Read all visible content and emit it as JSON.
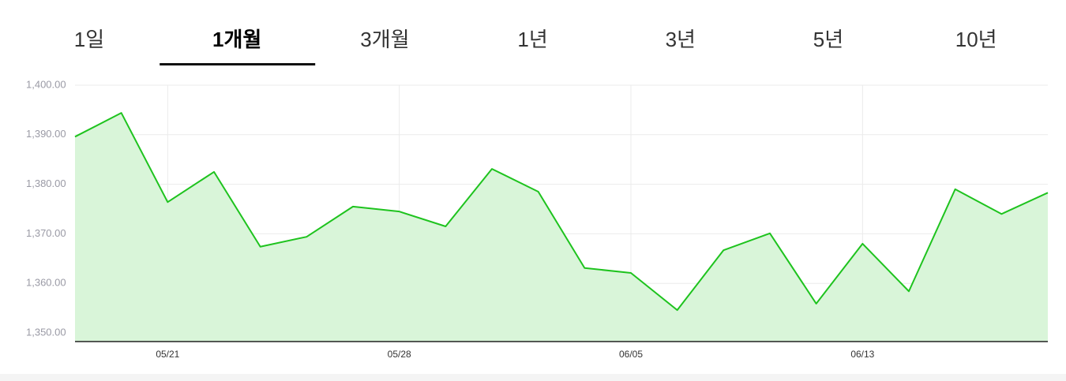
{
  "tabs": [
    "1일",
    "1개월",
    "3개월",
    "1년",
    "3년",
    "5년",
    "10년"
  ],
  "active_tab": 1,
  "chart_data": {
    "type": "area",
    "categories": [
      null,
      null,
      "05/21",
      null,
      null,
      null,
      null,
      "05/28",
      null,
      null,
      null,
      null,
      "06/05",
      null,
      null,
      null,
      null,
      "06/13",
      null,
      null,
      null,
      null
    ],
    "series": [
      {
        "color": "#1ec31e",
        "values": [
          1389.6,
          1394.4,
          1376.4,
          1382.5,
          1367.4,
          1369.4,
          1375.5,
          1374.5,
          1371.5,
          1383.1,
          1378.5,
          1363.1,
          1362.1,
          1354.6,
          1366.7,
          1370.1,
          1355.9,
          1368.0,
          1358.4,
          1379.0,
          1374.0,
          1378.3
        ]
      }
    ],
    "fill_color": "#d9f5d9",
    "ylim": [
      1348.25,
      1400
    ],
    "yticks": [
      {
        "value": 1350,
        "label": "1,350.00"
      },
      {
        "value": 1360,
        "label": "1,360.00"
      },
      {
        "value": 1370,
        "label": "1,370.00"
      },
      {
        "value": 1380,
        "label": "1,380.00"
      },
      {
        "value": 1390,
        "label": "1,390.00"
      },
      {
        "value": 1400,
        "label": "1,400.00"
      }
    ],
    "grid": true
  }
}
